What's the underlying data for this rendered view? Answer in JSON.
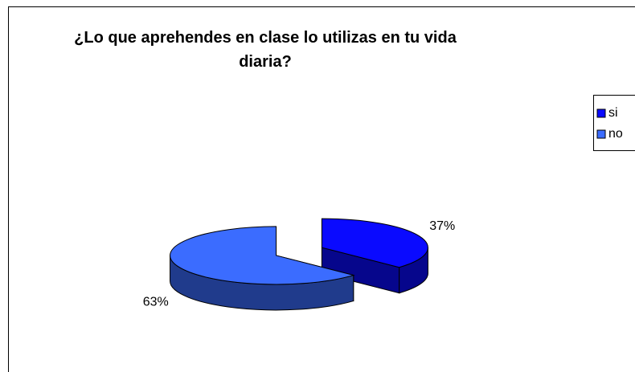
{
  "chart_data": {
    "type": "pie",
    "title": "¿Lo que aprehendes en clase lo utilizas en tu vida diaria?",
    "categories": [
      "si",
      "no"
    ],
    "values": [
      37,
      63
    ],
    "value_labels": [
      "37%",
      "63%"
    ],
    "colors": [
      "#0a0aff",
      "#3b6cff"
    ],
    "legend": "right",
    "exploded": true,
    "three_d": true
  }
}
